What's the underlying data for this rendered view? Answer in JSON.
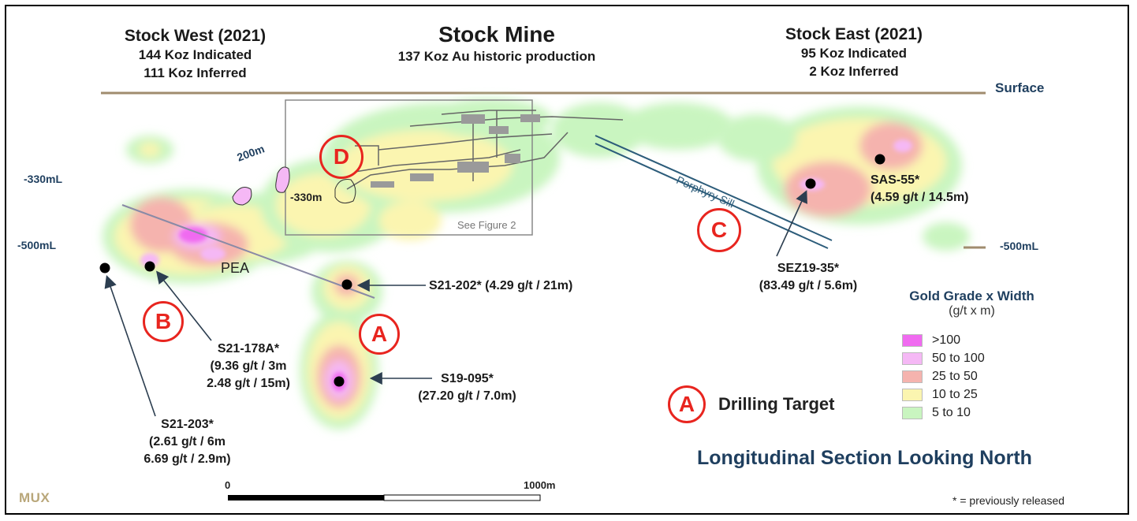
{
  "headers": {
    "west": {
      "title": "Stock West (2021)",
      "line1": "144 Koz Indicated",
      "line2": "111 Koz Inferred"
    },
    "mine": {
      "title": "Stock Mine",
      "line1": "137 Koz Au historic production"
    },
    "east": {
      "title": "Stock East (2021)",
      "line1": "95 Koz Indicated",
      "line2": "2 Koz Inferred"
    }
  },
  "labels": {
    "surface": "Surface",
    "depth_330_left": "-330mL",
    "depth_500_left": "-500mL",
    "depth_500_right": "-500mL",
    "depth_330_inner": "-330m",
    "depth_200": "200m",
    "porphyry": "Porphyry Sill",
    "see_figure": "See Figure 2",
    "pea": "PEA"
  },
  "targets": [
    "A",
    "B",
    "C",
    "D"
  ],
  "drillholes": {
    "s21_202": "S21-202* (4.29 g/t / 21m)",
    "s19_095": {
      "line1": "S19-095*",
      "line2": "(27.20 g/t / 7.0m)"
    },
    "s21_178a": {
      "line1": "S21-178A*",
      "line2": "(9.36 g/t / 3m",
      "line3": "2.48 g/t / 15m)"
    },
    "s21_203": {
      "line1": "S21-203*",
      "line2": "(2.61 g/t / 6m",
      "line3": "6.69 g/t / 2.9m)"
    },
    "sez19_35": {
      "line1": "SEZ19-35*",
      "line2": "(83.49 g/t / 5.6m)"
    },
    "sas_55": {
      "line1": "SAS-55*",
      "line2": "(4.59 g/t / 14.5m)"
    }
  },
  "legend": {
    "title": "Gold Grade x Width",
    "unit": "(g/t x m)",
    "items": [
      {
        "label": ">100",
        "color": "#f06af0"
      },
      {
        "label": "50 to 100",
        "color": "#f5b8f5"
      },
      {
        "label": "25 to 50",
        "color": "#f5b3ae"
      },
      {
        "label": "10 to 25",
        "color": "#fbf5b0"
      },
      {
        "label": "5 to 10",
        "color": "#c9f5c0"
      }
    ]
  },
  "drilling_target": "Drilling Target",
  "drilling_target_letter": "A",
  "section_title": "Longitudinal Section Looking North",
  "scale": {
    "start": "0",
    "end": "1000m"
  },
  "footnote": "* = previously released",
  "logo": "MUX",
  "colors": {
    "accent_red": "#e8251f",
    "label_blue": "#1f3f5f",
    "surface_line": "#a08c6e"
  }
}
